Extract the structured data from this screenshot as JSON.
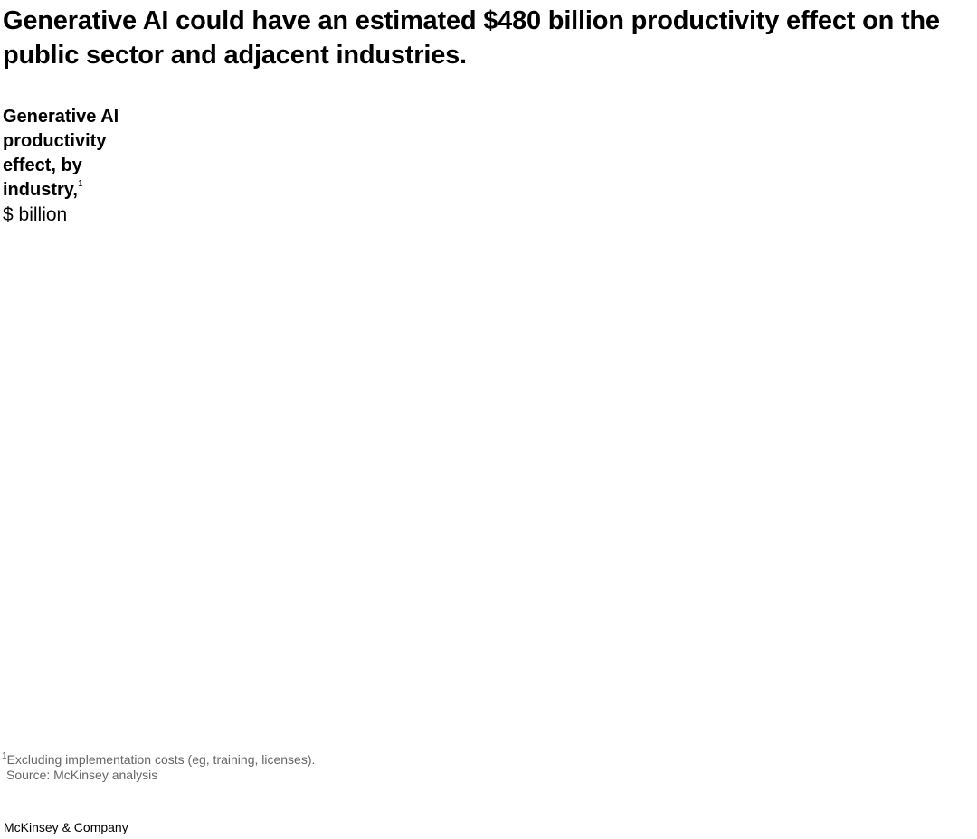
{
  "header": {
    "title": "Generative AI could have an estimated $480 billion productivity effect on the public sector and adjacent industries."
  },
  "subtitle": {
    "text": "Generative AI productivity effect, by industry,",
    "footnote_marker": "1",
    "unit": "$ billion"
  },
  "footnotes": {
    "marker": "1",
    "note": "Excluding implementation costs (eg, training, licenses).",
    "source": "Source: McKinsey analysis"
  },
  "brand": "McKinsey & Company"
}
